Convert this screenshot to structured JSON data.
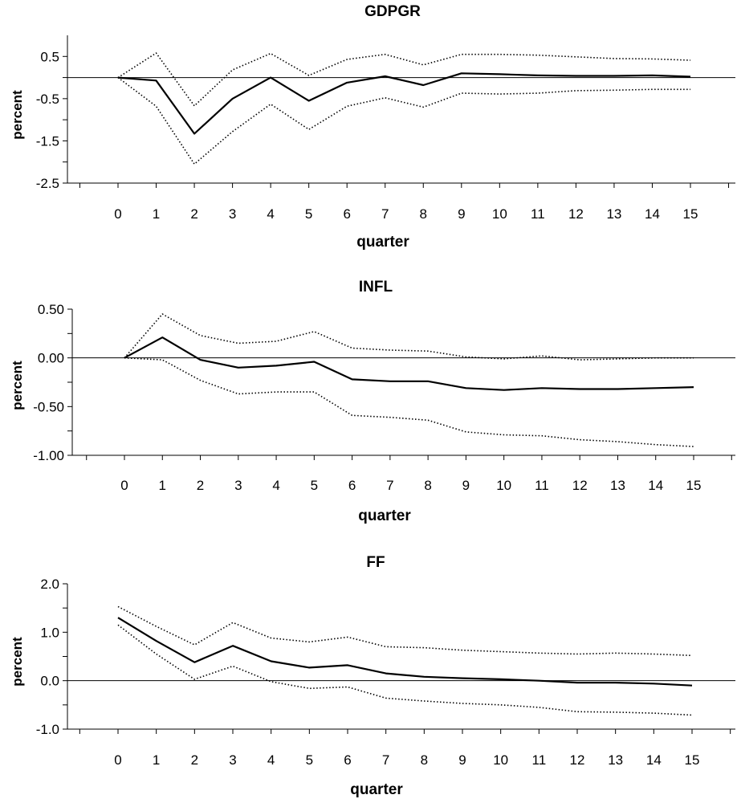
{
  "chart_data": [
    {
      "type": "line",
      "title": "GDPGR",
      "xlabel": "quarter",
      "ylabel": "percent",
      "ylim": [
        -2.5,
        1.0
      ],
      "yticks": [
        "0.5",
        "-0.5",
        "-1.5",
        "-2.5"
      ],
      "ytick_values": [
        0.5,
        -0.5,
        -1.5,
        -2.5
      ],
      "x": [
        0,
        1,
        2,
        3,
        4,
        5,
        6,
        7,
        8,
        9,
        10,
        11,
        12,
        13,
        14,
        15
      ],
      "series": [
        {
          "style": "solid",
          "values": [
            0.0,
            -0.07,
            -1.33,
            -0.5,
            0.0,
            -0.55,
            -0.12,
            0.03,
            -0.18,
            0.1,
            0.08,
            0.05,
            0.04,
            0.04,
            0.05,
            0.02
          ]
        },
        {
          "style": "dotted",
          "values": [
            0.0,
            0.58,
            -0.67,
            0.18,
            0.57,
            0.05,
            0.43,
            0.55,
            0.3,
            0.55,
            0.55,
            0.53,
            0.49,
            0.45,
            0.44,
            0.41
          ]
        },
        {
          "style": "dotted",
          "values": [
            0.0,
            -0.68,
            -2.05,
            -1.28,
            -0.63,
            -1.23,
            -0.68,
            -0.48,
            -0.7,
            -0.37,
            -0.39,
            -0.37,
            -0.31,
            -0.3,
            -0.28,
            -0.28
          ]
        }
      ]
    },
    {
      "type": "line",
      "title": "INFL",
      "xlabel": "quarter",
      "ylabel": "percent",
      "ylim": [
        -1.0,
        0.5
      ],
      "yticks": [
        "0.50",
        "0.00",
        "-0.50",
        "-1.00"
      ],
      "ytick_values": [
        0.5,
        0.0,
        -0.5,
        -1.0
      ],
      "x": [
        0,
        1,
        2,
        3,
        4,
        5,
        6,
        7,
        8,
        9,
        10,
        11,
        12,
        13,
        14,
        15
      ],
      "series": [
        {
          "style": "solid",
          "values": [
            0.0,
            0.21,
            -0.02,
            -0.1,
            -0.08,
            -0.04,
            -0.22,
            -0.24,
            -0.24,
            -0.31,
            -0.33,
            -0.31,
            -0.32,
            -0.32,
            -0.31,
            -0.3
          ]
        },
        {
          "style": "dotted",
          "values": [
            0.0,
            0.45,
            0.23,
            0.15,
            0.17,
            0.27,
            0.1,
            0.08,
            0.07,
            0.01,
            -0.01,
            0.02,
            -0.02,
            -0.01,
            0.0,
            0.0
          ]
        },
        {
          "style": "dotted",
          "values": [
            0.0,
            -0.02,
            -0.23,
            -0.37,
            -0.35,
            -0.35,
            -0.59,
            -0.61,
            -0.64,
            -0.76,
            -0.79,
            -0.8,
            -0.84,
            -0.86,
            -0.89,
            -0.91
          ]
        }
      ]
    },
    {
      "type": "line",
      "title": "FF",
      "xlabel": "quarter",
      "ylabel": "percent",
      "ylim": [
        -1.0,
        2.0
      ],
      "yticks": [
        "2.0",
        "1.0",
        "0.0",
        "-1.0"
      ],
      "ytick_values": [
        2.0,
        1.0,
        0.0,
        -1.0
      ],
      "x": [
        0,
        1,
        2,
        3,
        4,
        5,
        6,
        7,
        8,
        9,
        10,
        11,
        12,
        13,
        14,
        15
      ],
      "series": [
        {
          "style": "solid",
          "values": [
            1.3,
            0.82,
            0.38,
            0.72,
            0.4,
            0.27,
            0.32,
            0.15,
            0.08,
            0.05,
            0.03,
            0.0,
            -0.04,
            -0.04,
            -0.06,
            -0.1
          ]
        },
        {
          "style": "dotted",
          "values": [
            1.53,
            1.12,
            0.74,
            1.2,
            0.88,
            0.8,
            0.9,
            0.7,
            0.68,
            0.63,
            0.6,
            0.57,
            0.55,
            0.57,
            0.55,
            0.52
          ]
        },
        {
          "style": "dotted",
          "values": [
            1.15,
            0.55,
            0.03,
            0.3,
            -0.02,
            -0.16,
            -0.13,
            -0.36,
            -0.42,
            -0.47,
            -0.5,
            -0.55,
            -0.64,
            -0.65,
            -0.67,
            -0.71
          ]
        }
      ]
    }
  ]
}
